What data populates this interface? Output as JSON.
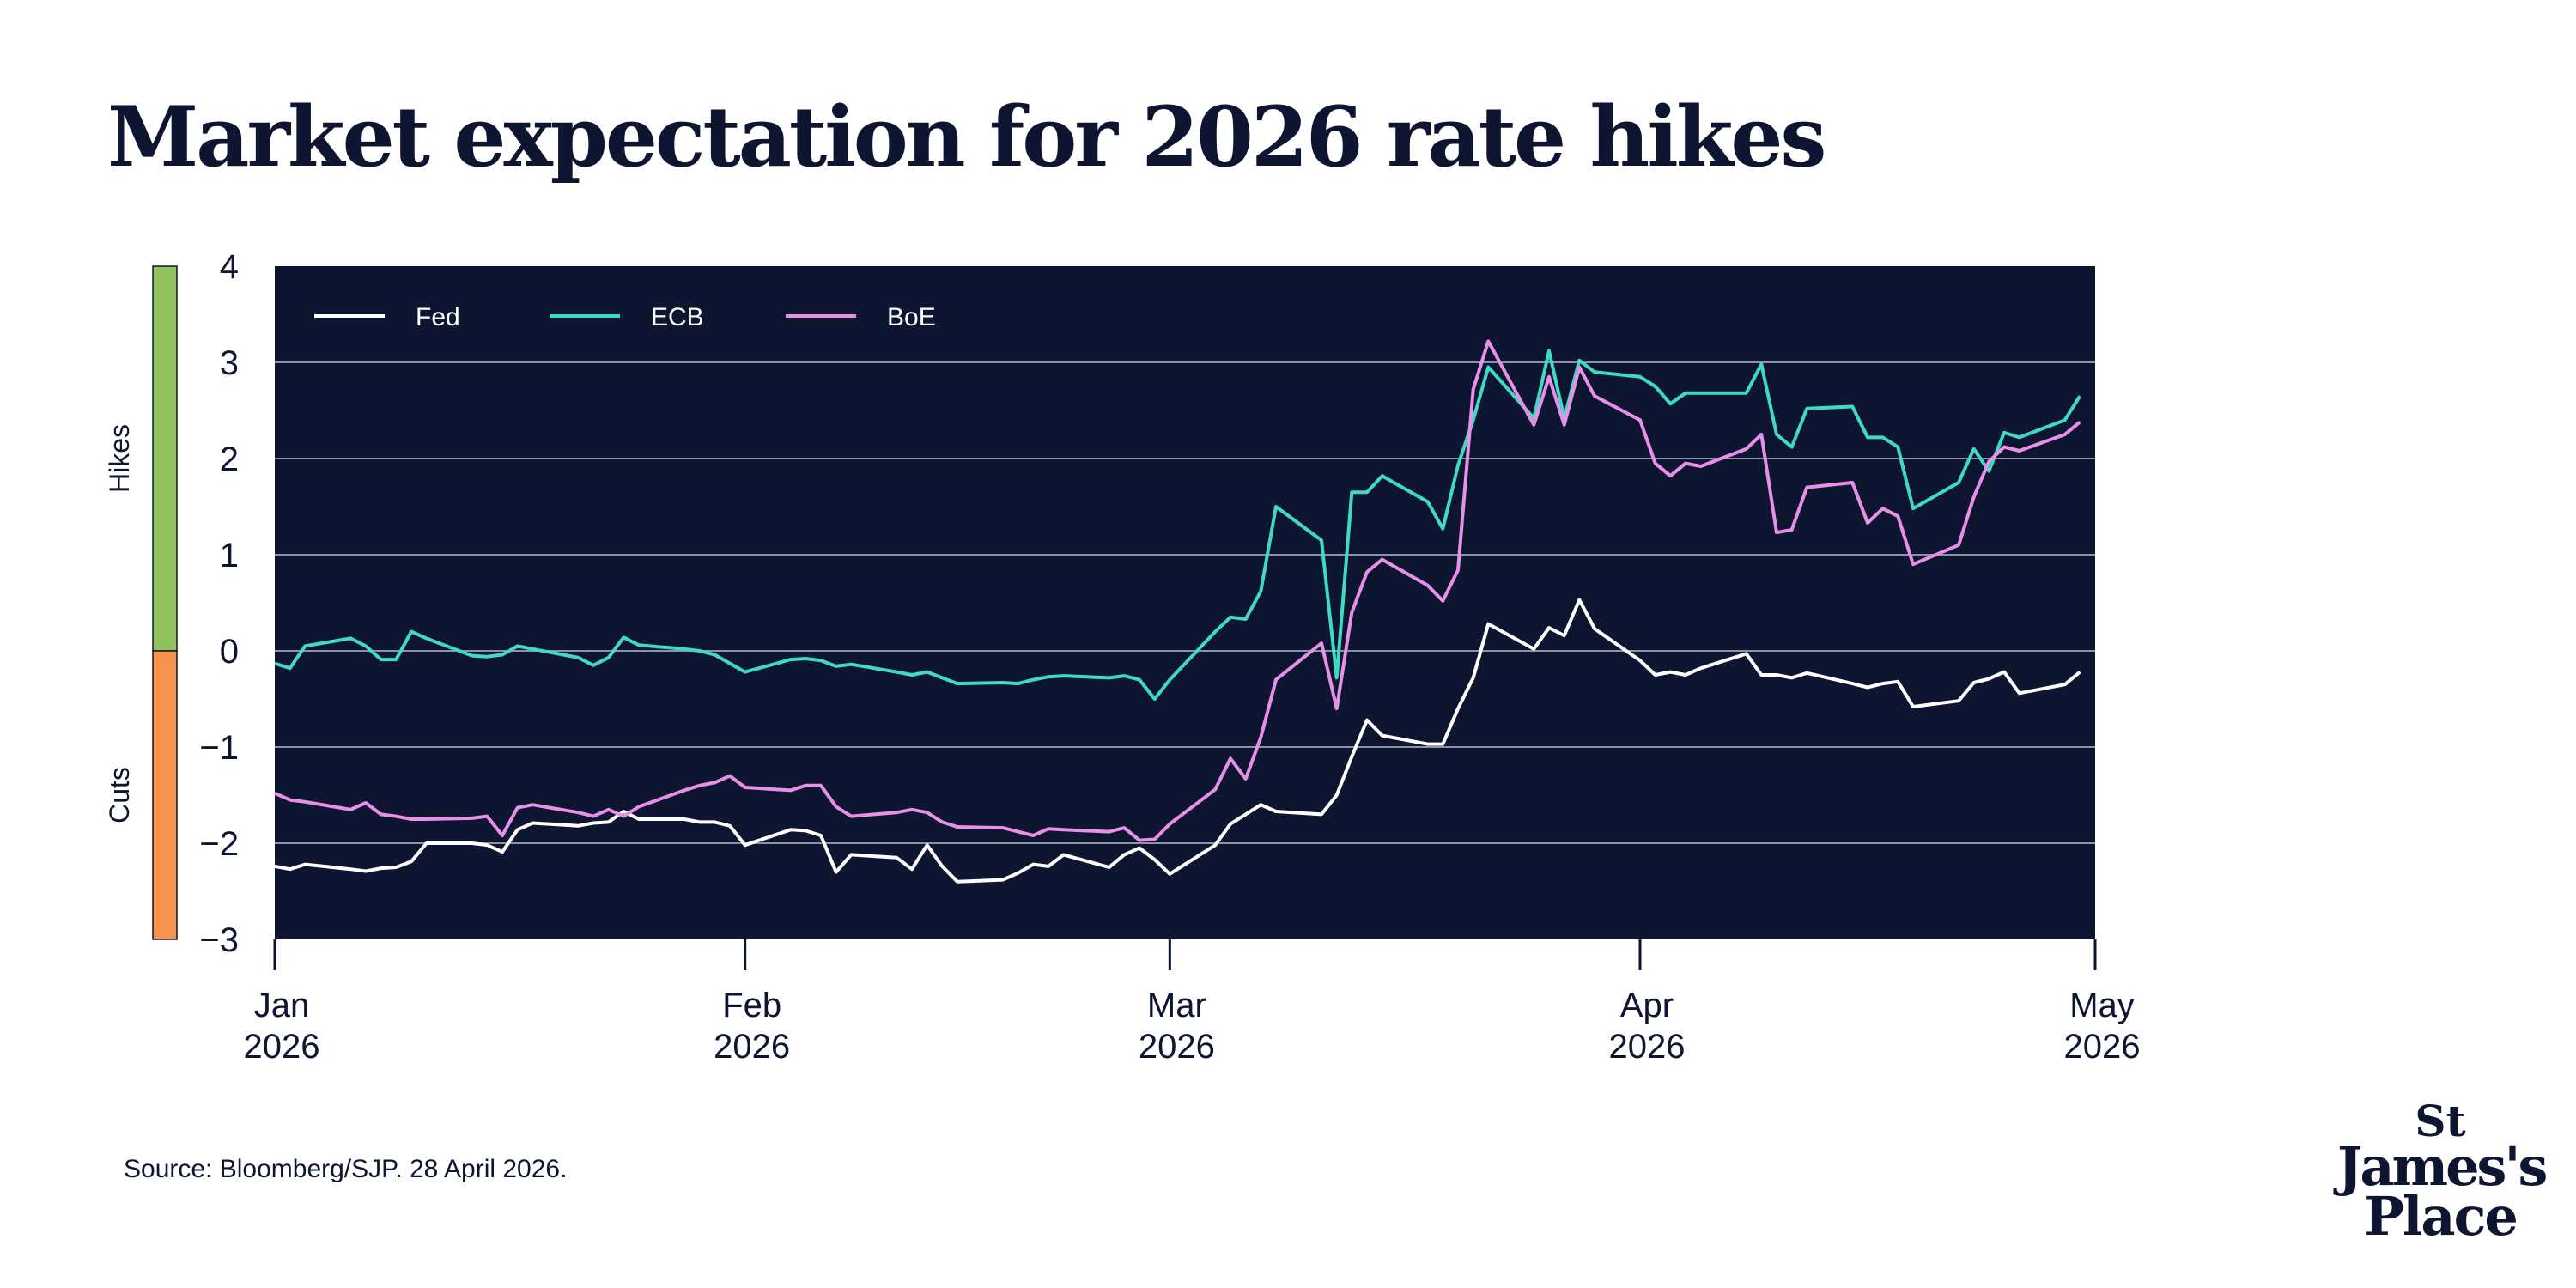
{
  "title": "Market expectation for 2026 rate hikes",
  "source": "Source: Bloomberg/SJP. 28 April 2026.",
  "logo": {
    "line1": "St",
    "line2": "James's",
    "line3": "Place"
  },
  "colors": {
    "plot_bg": "#0d1530",
    "text": "#0d1530",
    "grid": "#8a93a8",
    "hikes_band": "#8fc25a",
    "cuts_band": "#f7934c"
  },
  "chart_data": {
    "type": "line",
    "title": "Market expectation for 2026 rate hikes",
    "ylim": [
      -3,
      4
    ],
    "yticks": [
      4,
      3,
      2,
      1,
      0,
      -1,
      -2,
      -3
    ],
    "ytick_labels": [
      "4",
      "3",
      "2",
      "1",
      "0",
      "−1",
      "−2",
      "−3"
    ],
    "xlim": [
      "2026-01-01",
      "2026-05-01"
    ],
    "xticks": [
      {
        "date": "2026-01-01",
        "label1": "Jan",
        "label2": "2026"
      },
      {
        "date": "2026-02-01",
        "label1": "Feb",
        "label2": "2026"
      },
      {
        "date": "2026-03-01",
        "label1": "Mar",
        "label2": "2026"
      },
      {
        "date": "2026-04-01",
        "label1": "Apr",
        "label2": "2026"
      },
      {
        "date": "2026-05-01",
        "label1": "May",
        "label2": "2026"
      }
    ],
    "grid": true,
    "legend_position": "top-left",
    "bands": [
      {
        "label": "Hikes",
        "from": 0,
        "to": 4,
        "color": "#8fc25a"
      },
      {
        "label": "Cuts",
        "from": -3,
        "to": 0,
        "color": "#f7934c"
      }
    ],
    "series": [
      {
        "name": "Fed",
        "color": "#ffffff",
        "points": [
          [
            "2026-01-01",
            -2.24
          ],
          [
            "2026-01-02",
            -2.27
          ],
          [
            "2026-01-03",
            -2.22
          ],
          [
            "2026-01-06",
            -2.27
          ],
          [
            "2026-01-07",
            -2.29
          ],
          [
            "2026-01-08",
            -2.26
          ],
          [
            "2026-01-09",
            -2.25
          ],
          [
            "2026-01-10",
            -2.19
          ],
          [
            "2026-01-11",
            -2.0
          ],
          [
            "2026-01-14",
            -2.0
          ],
          [
            "2026-01-15",
            -2.02
          ],
          [
            "2026-01-16",
            -2.09
          ],
          [
            "2026-01-17",
            -1.86
          ],
          [
            "2026-01-18",
            -1.79
          ],
          [
            "2026-01-21",
            -1.82
          ],
          [
            "2026-01-22",
            -1.79
          ],
          [
            "2026-01-23",
            -1.78
          ],
          [
            "2026-01-24",
            -1.67
          ],
          [
            "2026-01-25",
            -1.75
          ],
          [
            "2026-01-28",
            -1.75
          ],
          [
            "2026-01-29",
            -1.78
          ],
          [
            "2026-01-30",
            -1.78
          ],
          [
            "2026-01-31",
            -1.82
          ],
          [
            "2026-02-01",
            -2.02
          ],
          [
            "2026-02-04",
            -1.86
          ],
          [
            "2026-02-05",
            -1.87
          ],
          [
            "2026-02-06",
            -1.92
          ],
          [
            "2026-02-07",
            -2.3
          ],
          [
            "2026-02-08",
            -2.12
          ],
          [
            "2026-02-11",
            -2.15
          ],
          [
            "2026-02-12",
            -2.27
          ],
          [
            "2026-02-13",
            -2.02
          ],
          [
            "2026-02-14",
            -2.24
          ],
          [
            "2026-02-15",
            -2.4
          ],
          [
            "2026-02-18",
            -2.38
          ],
          [
            "2026-02-19",
            -2.31
          ],
          [
            "2026-02-20",
            -2.22
          ],
          [
            "2026-02-21",
            -2.24
          ],
          [
            "2026-02-22",
            -2.12
          ],
          [
            "2026-02-25",
            -2.25
          ],
          [
            "2026-02-26",
            -2.12
          ],
          [
            "2026-02-27",
            -2.05
          ],
          [
            "2026-02-28",
            -2.17
          ],
          [
            "2026-03-01",
            -2.32
          ],
          [
            "2026-03-04",
            -2.02
          ],
          [
            "2026-03-05",
            -1.8
          ],
          [
            "2026-03-06",
            -1.7
          ],
          [
            "2026-03-07",
            -1.6
          ],
          [
            "2026-03-08",
            -1.67
          ],
          [
            "2026-03-11",
            -1.7
          ],
          [
            "2026-03-12",
            -1.5
          ],
          [
            "2026-03-13",
            -1.1
          ],
          [
            "2026-03-14",
            -0.72
          ],
          [
            "2026-03-15",
            -0.88
          ],
          [
            "2026-03-18",
            -0.97
          ],
          [
            "2026-03-19",
            -0.97
          ],
          [
            "2026-03-20",
            -0.6
          ],
          [
            "2026-03-21",
            -0.28
          ],
          [
            "2026-03-22",
            0.28
          ],
          [
            "2026-03-25",
            0.02
          ],
          [
            "2026-03-26",
            0.24
          ],
          [
            "2026-03-27",
            0.16
          ],
          [
            "2026-03-28",
            0.53
          ],
          [
            "2026-03-29",
            0.23
          ],
          [
            "2026-04-01",
            -0.1
          ],
          [
            "2026-04-02",
            -0.25
          ],
          [
            "2026-04-03",
            -0.22
          ],
          [
            "2026-04-04",
            -0.25
          ],
          [
            "2026-04-05",
            -0.18
          ],
          [
            "2026-04-08",
            -0.03
          ],
          [
            "2026-04-09",
            -0.25
          ],
          [
            "2026-04-10",
            -0.25
          ],
          [
            "2026-04-11",
            -0.28
          ],
          [
            "2026-04-12",
            -0.23
          ],
          [
            "2026-04-15",
            -0.34
          ],
          [
            "2026-04-16",
            -0.38
          ],
          [
            "2026-04-17",
            -0.34
          ],
          [
            "2026-04-18",
            -0.32
          ],
          [
            "2026-04-19",
            -0.58
          ],
          [
            "2026-04-22",
            -0.52
          ],
          [
            "2026-04-23",
            -0.33
          ],
          [
            "2026-04-24",
            -0.29
          ],
          [
            "2026-04-25",
            -0.22
          ],
          [
            "2026-04-26",
            -0.44
          ],
          [
            "2026-04-29",
            -0.35
          ],
          [
            "2026-04-30",
            -0.22
          ]
        ]
      },
      {
        "name": "ECB",
        "color": "#3fd9c5",
        "points": [
          [
            "2026-01-01",
            -0.13
          ],
          [
            "2026-01-02",
            -0.18
          ],
          [
            "2026-01-03",
            0.05
          ],
          [
            "2026-01-06",
            0.13
          ],
          [
            "2026-01-07",
            0.05
          ],
          [
            "2026-01-08",
            -0.09
          ],
          [
            "2026-01-09",
            -0.09
          ],
          [
            "2026-01-10",
            0.2
          ],
          [
            "2026-01-11",
            0.13
          ],
          [
            "2026-01-14",
            -0.05
          ],
          [
            "2026-01-15",
            -0.06
          ],
          [
            "2026-01-16",
            -0.04
          ],
          [
            "2026-01-17",
            0.05
          ],
          [
            "2026-01-18",
            0.02
          ],
          [
            "2026-01-21",
            -0.07
          ],
          [
            "2026-01-22",
            -0.15
          ],
          [
            "2026-01-23",
            -0.07
          ],
          [
            "2026-01-24",
            0.14
          ],
          [
            "2026-01-25",
            0.06
          ],
          [
            "2026-01-28",
            0.02
          ],
          [
            "2026-01-29",
            0.0
          ],
          [
            "2026-01-30",
            -0.04
          ],
          [
            "2026-01-31",
            -0.13
          ],
          [
            "2026-02-01",
            -0.22
          ],
          [
            "2026-02-04",
            -0.09
          ],
          [
            "2026-02-05",
            -0.08
          ],
          [
            "2026-02-06",
            -0.1
          ],
          [
            "2026-02-07",
            -0.16
          ],
          [
            "2026-02-08",
            -0.14
          ],
          [
            "2026-02-11",
            -0.22
          ],
          [
            "2026-02-12",
            -0.25
          ],
          [
            "2026-02-13",
            -0.22
          ],
          [
            "2026-02-14",
            -0.28
          ],
          [
            "2026-02-15",
            -0.34
          ],
          [
            "2026-02-18",
            -0.33
          ],
          [
            "2026-02-19",
            -0.34
          ],
          [
            "2026-02-20",
            -0.3
          ],
          [
            "2026-02-21",
            -0.27
          ],
          [
            "2026-02-22",
            -0.26
          ],
          [
            "2026-02-25",
            -0.28
          ],
          [
            "2026-02-26",
            -0.26
          ],
          [
            "2026-02-27",
            -0.3
          ],
          [
            "2026-02-28",
            -0.5
          ],
          [
            "2026-03-01",
            -0.3
          ],
          [
            "2026-03-04",
            0.2
          ],
          [
            "2026-03-05",
            0.35
          ],
          [
            "2026-03-06",
            0.33
          ],
          [
            "2026-03-07",
            0.62
          ],
          [
            "2026-03-08",
            1.5
          ],
          [
            "2026-03-11",
            1.15
          ],
          [
            "2026-03-12",
            -0.28
          ],
          [
            "2026-03-13",
            1.65
          ],
          [
            "2026-03-14",
            1.65
          ],
          [
            "2026-03-15",
            1.82
          ],
          [
            "2026-03-18",
            1.55
          ],
          [
            "2026-03-19",
            1.27
          ],
          [
            "2026-03-20",
            1.93
          ],
          [
            "2026-03-21",
            2.4
          ],
          [
            "2026-03-22",
            2.95
          ],
          [
            "2026-03-25",
            2.42
          ],
          [
            "2026-03-26",
            3.12
          ],
          [
            "2026-03-27",
            2.42
          ],
          [
            "2026-03-28",
            3.02
          ],
          [
            "2026-03-29",
            2.9
          ],
          [
            "2026-04-01",
            2.85
          ],
          [
            "2026-04-02",
            2.75
          ],
          [
            "2026-04-03",
            2.57
          ],
          [
            "2026-04-04",
            2.68
          ],
          [
            "2026-04-05",
            2.68
          ],
          [
            "2026-04-08",
            2.68
          ],
          [
            "2026-04-09",
            2.98
          ],
          [
            "2026-04-10",
            2.25
          ],
          [
            "2026-04-11",
            2.12
          ],
          [
            "2026-04-12",
            2.52
          ],
          [
            "2026-04-15",
            2.54
          ],
          [
            "2026-04-16",
            2.22
          ],
          [
            "2026-04-17",
            2.22
          ],
          [
            "2026-04-18",
            2.12
          ],
          [
            "2026-04-19",
            1.48
          ],
          [
            "2026-04-22",
            1.75
          ],
          [
            "2026-04-23",
            2.1
          ],
          [
            "2026-04-24",
            1.87
          ],
          [
            "2026-04-25",
            2.27
          ],
          [
            "2026-04-26",
            2.22
          ],
          [
            "2026-04-29",
            2.4
          ],
          [
            "2026-04-30",
            2.65
          ]
        ]
      },
      {
        "name": "BoE",
        "color": "#e88fe8",
        "points": [
          [
            "2026-01-01",
            -1.48
          ],
          [
            "2026-01-02",
            -1.55
          ],
          [
            "2026-01-03",
            -1.57
          ],
          [
            "2026-01-06",
            -1.65
          ],
          [
            "2026-01-07",
            -1.58
          ],
          [
            "2026-01-08",
            -1.7
          ],
          [
            "2026-01-09",
            -1.72
          ],
          [
            "2026-01-10",
            -1.75
          ],
          [
            "2026-01-11",
            -1.75
          ],
          [
            "2026-01-14",
            -1.74
          ],
          [
            "2026-01-15",
            -1.72
          ],
          [
            "2026-01-16",
            -1.92
          ],
          [
            "2026-01-17",
            -1.63
          ],
          [
            "2026-01-18",
            -1.6
          ],
          [
            "2026-01-21",
            -1.68
          ],
          [
            "2026-01-22",
            -1.72
          ],
          [
            "2026-01-23",
            -1.65
          ],
          [
            "2026-01-24",
            -1.72
          ],
          [
            "2026-01-25",
            -1.62
          ],
          [
            "2026-01-28",
            -1.45
          ],
          [
            "2026-01-29",
            -1.4
          ],
          [
            "2026-01-30",
            -1.37
          ],
          [
            "2026-01-31",
            -1.3
          ],
          [
            "2026-02-01",
            -1.42
          ],
          [
            "2026-02-04",
            -1.45
          ],
          [
            "2026-02-05",
            -1.4
          ],
          [
            "2026-02-06",
            -1.4
          ],
          [
            "2026-02-07",
            -1.62
          ],
          [
            "2026-02-08",
            -1.72
          ],
          [
            "2026-02-11",
            -1.68
          ],
          [
            "2026-02-12",
            -1.65
          ],
          [
            "2026-02-13",
            -1.68
          ],
          [
            "2026-02-14",
            -1.78
          ],
          [
            "2026-02-15",
            -1.83
          ],
          [
            "2026-02-18",
            -1.84
          ],
          [
            "2026-02-19",
            -1.88
          ],
          [
            "2026-02-20",
            -1.92
          ],
          [
            "2026-02-21",
            -1.85
          ],
          [
            "2026-02-22",
            -1.86
          ],
          [
            "2026-02-25",
            -1.88
          ],
          [
            "2026-02-26",
            -1.84
          ],
          [
            "2026-02-27",
            -1.97
          ],
          [
            "2026-02-28",
            -1.96
          ],
          [
            "2026-03-01",
            -1.8
          ],
          [
            "2026-03-04",
            -1.44
          ],
          [
            "2026-03-05",
            -1.12
          ],
          [
            "2026-03-06",
            -1.33
          ],
          [
            "2026-03-07",
            -0.9
          ],
          [
            "2026-03-08",
            -0.3
          ],
          [
            "2026-03-11",
            0.08
          ],
          [
            "2026-03-12",
            -0.6
          ],
          [
            "2026-03-13",
            0.4
          ],
          [
            "2026-03-14",
            0.82
          ],
          [
            "2026-03-15",
            0.95
          ],
          [
            "2026-03-18",
            0.68
          ],
          [
            "2026-03-19",
            0.52
          ],
          [
            "2026-03-20",
            0.84
          ],
          [
            "2026-03-21",
            2.72
          ],
          [
            "2026-03-22",
            3.22
          ],
          [
            "2026-03-25",
            2.35
          ],
          [
            "2026-03-26",
            2.85
          ],
          [
            "2026-03-27",
            2.35
          ],
          [
            "2026-03-28",
            2.95
          ],
          [
            "2026-03-29",
            2.65
          ],
          [
            "2026-04-01",
            2.4
          ],
          [
            "2026-04-02",
            1.95
          ],
          [
            "2026-04-03",
            1.82
          ],
          [
            "2026-04-04",
            1.95
          ],
          [
            "2026-04-05",
            1.92
          ],
          [
            "2026-04-08",
            2.1
          ],
          [
            "2026-04-09",
            2.25
          ],
          [
            "2026-04-10",
            1.23
          ],
          [
            "2026-04-11",
            1.26
          ],
          [
            "2026-04-12",
            1.7
          ],
          [
            "2026-04-15",
            1.75
          ],
          [
            "2026-04-16",
            1.33
          ],
          [
            "2026-04-17",
            1.48
          ],
          [
            "2026-04-18",
            1.4
          ],
          [
            "2026-04-19",
            0.9
          ],
          [
            "2026-04-22",
            1.1
          ],
          [
            "2026-04-23",
            1.6
          ],
          [
            "2026-04-24",
            1.97
          ],
          [
            "2026-04-25",
            2.12
          ],
          [
            "2026-04-26",
            2.08
          ],
          [
            "2026-04-29",
            2.25
          ],
          [
            "2026-04-30",
            2.38
          ]
        ]
      }
    ]
  }
}
